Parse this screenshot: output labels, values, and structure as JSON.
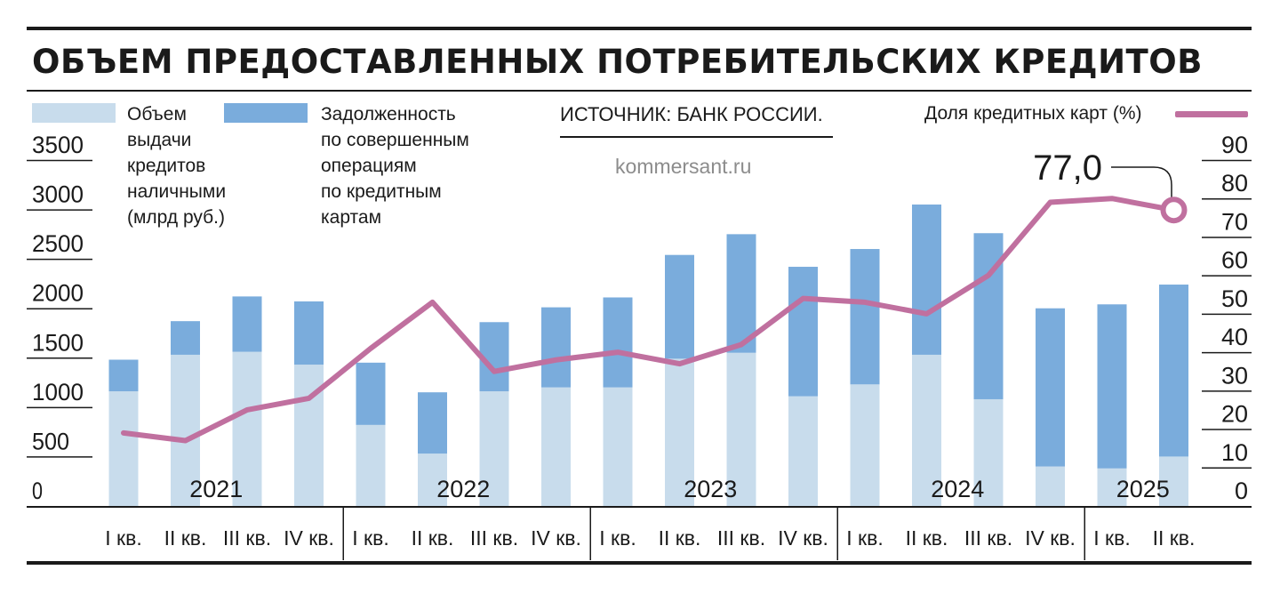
{
  "title": "ОБЪЕМ ПРЕДОСТАВЛЕННЫХ ПОТРЕБИТЕЛЬСКИХ КРЕДИТОВ",
  "source": "ИСТОЧНИК: БАНК РОССИИ.",
  "watermark": "kommersant.ru",
  "colors": {
    "cash_loans": "#c8dcec",
    "card_debt": "#7aacdc",
    "card_share_line": "#c0709f",
    "text": "#1a1a1a",
    "grid": "#1a1a1a"
  },
  "legend": {
    "cash_loans": "Объем\nвыдачи\nкредитов\nналичными\n(млрд руб.)",
    "card_debt": "Задолженность\nпо совершенным\nоперациям\nпо кредитным\nкартам",
    "card_share": "Доля кредитных карт (%)"
  },
  "chart_data": {
    "type": "bar",
    "stacked": true,
    "title": "ОБЪЕМ ПРЕДОСТАВЛЕННЫХ ПОТРЕБИТЕЛЬСКИХ КРЕДИТОВ",
    "categories": [
      "I кв.",
      "II кв.",
      "III кв.",
      "IV кв.",
      "I кв.",
      "II кв.",
      "III кв.",
      "IV кв.",
      "I кв.",
      "II кв.",
      "III кв.",
      "IV кв.",
      "I кв.",
      "II кв.",
      "III кв.",
      "IV кв.",
      "I кв.",
      "II кв."
    ],
    "years": [
      {
        "label": "2021",
        "start": 0,
        "end": 3
      },
      {
        "label": "2022",
        "start": 4,
        "end": 7
      },
      {
        "label": "2023",
        "start": 8,
        "end": 11
      },
      {
        "label": "2024",
        "start": 12,
        "end": 15
      },
      {
        "label": "2025",
        "start": 16,
        "end": 17
      }
    ],
    "series": [
      {
        "name": "Объем выдачи кредитов наличными (млрд руб.)",
        "axis": "left",
        "kind": "bar",
        "values": [
          1160,
          1530,
          1560,
          1430,
          820,
          530,
          1160,
          1200,
          1200,
          1490,
          1550,
          1110,
          1230,
          1530,
          1080,
          400,
          380,
          500
        ]
      },
      {
        "name": "Задолженность по совершенным операциям по кредитным картам",
        "axis": "left",
        "kind": "bar",
        "values": [
          320,
          340,
          560,
          640,
          630,
          620,
          700,
          810,
          910,
          1050,
          1200,
          1310,
          1370,
          1520,
          1680,
          1600,
          1660,
          1740
        ]
      },
      {
        "name": "Доля кредитных карт (%)",
        "axis": "right",
        "kind": "line",
        "values": [
          19,
          17,
          25,
          28,
          41,
          53,
          35,
          38,
          40,
          37,
          42,
          54,
          53,
          50,
          60,
          79,
          80,
          77
        ]
      }
    ],
    "left_axis": {
      "min": 0,
      "max": 3500,
      "ticks": [
        0,
        500,
        1000,
        1500,
        2000,
        2500,
        3000,
        3500
      ]
    },
    "right_axis": {
      "min": 0,
      "max": 90,
      "ticks": [
        0,
        10,
        20,
        30,
        40,
        50,
        60,
        70,
        80,
        90
      ]
    },
    "annotation": {
      "index": 17,
      "label": "77,0"
    }
  }
}
